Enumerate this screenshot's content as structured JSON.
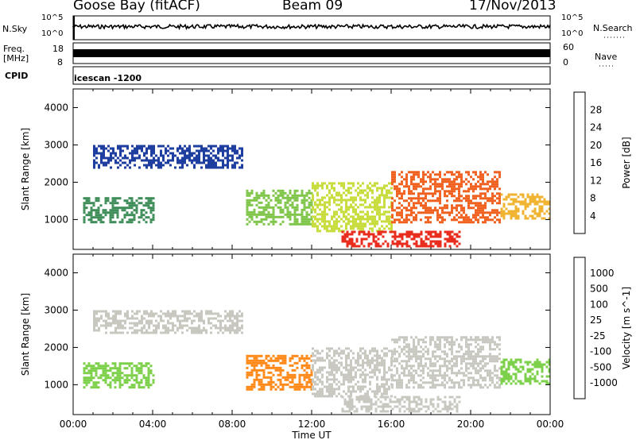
{
  "header": {
    "station": "Goose Bay (fitACF)",
    "beam": "Beam 09",
    "date": "17/Nov/2013"
  },
  "panels": {
    "nsky": {
      "label": "N.Sky",
      "ticks": [
        "10^5",
        "10^0"
      ],
      "right_ticks": [
        "10^5",
        "10^0"
      ],
      "right_label": "N.Search"
    },
    "freq": {
      "label": "Freq.",
      "unit": "[MHz]",
      "ticks": [
        "18",
        "8"
      ],
      "right_ticks": [
        "60",
        "0"
      ],
      "right_label": "Nave"
    },
    "cpid": {
      "label": "CPID",
      "value": "icescan -1200"
    }
  },
  "colors": {
    "power_scale": [
      "#1f1fff",
      "#1e3fa0",
      "#2a6e4a",
      "#3f8e5a",
      "#7fc64a",
      "#c8dc3c",
      "#f0b432",
      "#f48a1e",
      "#f0601e",
      "#e82d1e",
      "#dc1414"
    ],
    "velocity_scale": [
      "#ff1010",
      "#ff5010",
      "#ff8a1a",
      "#f0a030",
      "#c8c8c0",
      "#c8c8c0",
      "#7dd04a",
      "#2a8a3a",
      "#2a5aa0",
      "#1e32c8"
    ]
  },
  "chart_data": [
    {
      "type": "heatmap",
      "title": "Power",
      "ylabel": "Slant Range [km]",
      "ylim": [
        200,
        4500
      ],
      "yticks": [
        "4000",
        "3000",
        "2000",
        "1000"
      ],
      "colorbar": {
        "label": "Power [dB]",
        "ticks": [
          "28",
          "24",
          "20",
          "16",
          "12",
          "8",
          "4"
        ]
      },
      "xlim": [
        "00:00",
        "24:00"
      ],
      "regions": [
        {
          "t0": 0.5,
          "t1": 4.0,
          "r0": 900,
          "r1": 1600,
          "level": 3
        },
        {
          "t0": 1.0,
          "t1": 8.5,
          "r0": 2400,
          "r1": 3000,
          "level": 1
        },
        {
          "t0": 8.7,
          "t1": 12.0,
          "r0": 900,
          "r1": 1800,
          "level": 4
        },
        {
          "t0": 12.0,
          "t1": 16.0,
          "r0": 700,
          "r1": 2000,
          "level": 5
        },
        {
          "t0": 13.5,
          "t1": 19.5,
          "r0": 300,
          "r1": 700,
          "level": 9
        },
        {
          "t0": 16.0,
          "t1": 21.5,
          "r0": 900,
          "r1": 2300,
          "level": 8
        },
        {
          "t0": 21.5,
          "t1": 24.0,
          "r0": 1000,
          "r1": 1700,
          "level": 6
        }
      ]
    },
    {
      "type": "heatmap",
      "title": "Velocity",
      "ylabel": "Slant Range [km]",
      "ylim": [
        200,
        4500
      ],
      "yticks": [
        "4000",
        "3000",
        "2000",
        "1000"
      ],
      "xlabel": "Time UT",
      "xticks": [
        "00:00",
        "04:00",
        "08:00",
        "12:00",
        "16:00",
        "20:00",
        "00:00"
      ],
      "colorbar": {
        "label": "Velocity [m s^-1]",
        "ticks": [
          "1000",
          "500",
          "100",
          "25",
          "-25",
          "-100",
          "-500",
          "-1000"
        ]
      },
      "regions": [
        {
          "t0": 0.5,
          "t1": 4.0,
          "r0": 900,
          "r1": 1600,
          "level": 6
        },
        {
          "t0": 1.0,
          "t1": 8.5,
          "r0": 2400,
          "r1": 3000,
          "level": 4
        },
        {
          "t0": 8.7,
          "t1": 12.0,
          "r0": 900,
          "r1": 1800,
          "level": 2
        },
        {
          "t0": 12.0,
          "t1": 16.0,
          "r0": 700,
          "r1": 2000,
          "level": 4
        },
        {
          "t0": 13.5,
          "t1": 19.5,
          "r0": 300,
          "r1": 700,
          "level": 5
        },
        {
          "t0": 16.0,
          "t1": 21.5,
          "r0": 900,
          "r1": 2300,
          "level": 4
        },
        {
          "t0": 21.5,
          "t1": 24.0,
          "r0": 1000,
          "r1": 1700,
          "level": 6
        }
      ]
    }
  ]
}
